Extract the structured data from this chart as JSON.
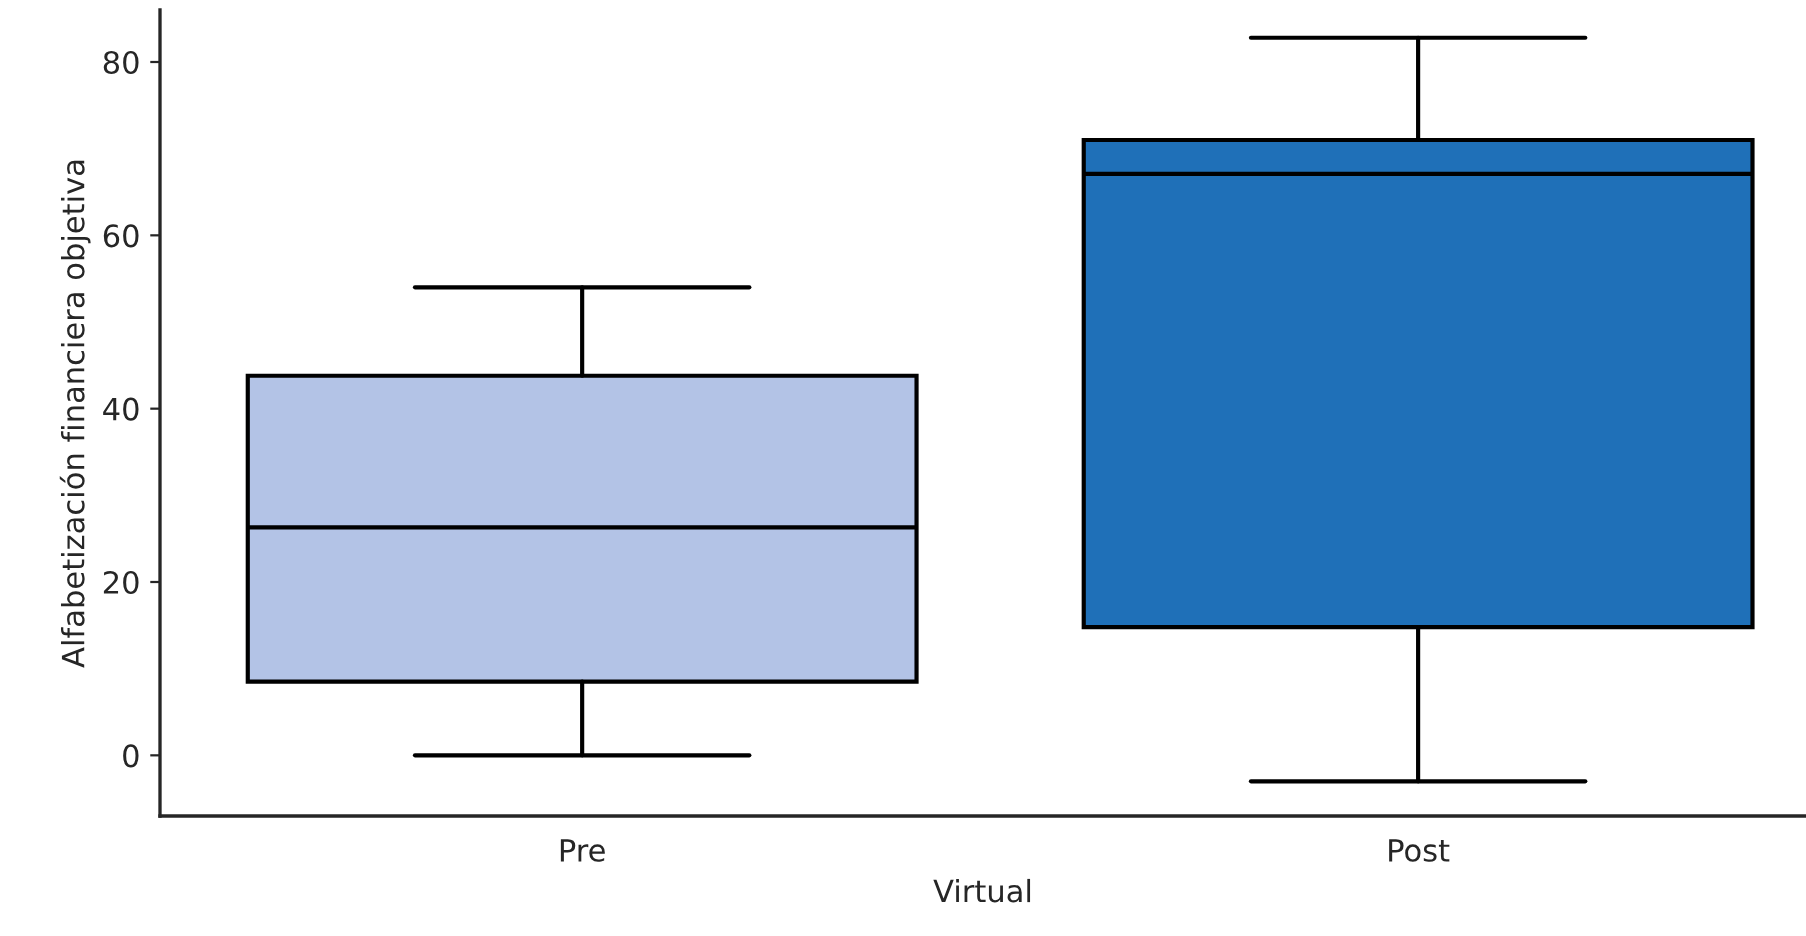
{
  "chart_data": {
    "type": "box",
    "xlabel": "Virtual",
    "ylabel": "Alfabetización financiera objetiva",
    "categories": [
      "Pre",
      "Post"
    ],
    "boxes": [
      {
        "low": 0,
        "q1": 8.5,
        "median": 26.3,
        "q3": 43.8,
        "high": 54
      },
      {
        "low": -3,
        "q1": 14.8,
        "median": 67.1,
        "q3": 71,
        "high": 82.8
      }
    ],
    "colors": [
      "#b3c3e6",
      "#1f70b8"
    ],
    "ylim": [
      -7,
      86
    ],
    "yticks": [
      0,
      20,
      40,
      60,
      80
    ],
    "grid": false
  }
}
